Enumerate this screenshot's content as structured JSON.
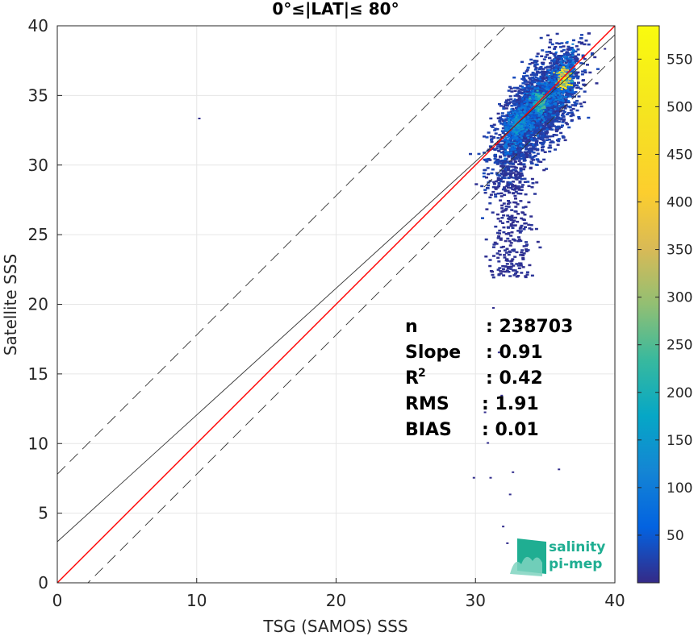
{
  "chart_data": {
    "type": "heatmap",
    "title": "0°≤|LAT|≤ 80°",
    "xlabel": "TSG (SAMOS) SSS",
    "ylabel": "Satellite SSS",
    "xlim": [
      0,
      40
    ],
    "ylim": [
      0,
      40
    ],
    "xticks": [
      "0",
      "10",
      "20",
      "30",
      "40"
    ],
    "yticks": [
      "0",
      "5",
      "10",
      "15",
      "20",
      "25",
      "30",
      "35",
      "40"
    ],
    "grid": true,
    "colorbar": {
      "range": [
        0,
        585
      ],
      "ticks": [
        "50",
        "100",
        "150",
        "200",
        "250",
        "300",
        "350",
        "400",
        "450",
        "500",
        "550"
      ],
      "colormap": "parula"
    },
    "reference_lines": [
      {
        "name": "1:1",
        "slope": 1,
        "intercept": 0,
        "color": "#ff0000",
        "style": "solid"
      },
      {
        "name": "fit",
        "slope": 0.91,
        "intercept": 2.95,
        "color": "#333333",
        "style": "solid"
      },
      {
        "name": "upper bound",
        "slope": 1,
        "intercept": 7.8,
        "color": "#333333",
        "style": "dashed"
      },
      {
        "name": "lower bound",
        "slope": 1,
        "intercept": -2.2,
        "color": "#333333",
        "style": "dashed"
      }
    ],
    "density_clusters": [
      {
        "x": 36.3,
        "y": 36.2,
        "peak": 560
      },
      {
        "x": 34.5,
        "y": 34.6,
        "peak": 260
      },
      {
        "x": 33.0,
        "y": 33.0,
        "peak": 180
      }
    ],
    "stats": [
      {
        "label": "n",
        "value": ": 238703",
        "sup": ""
      },
      {
        "label": "Slope",
        "value": ": 0.91",
        "sup": ""
      },
      {
        "label": "R",
        "value": ": 0.42",
        "sup": "2"
      },
      {
        "label": "RMS",
        "value": ": 1.91",
        "sup": ""
      },
      {
        "label": "BIAS",
        "value": ": 0.01",
        "sup": ""
      }
    ]
  },
  "logo": {
    "line1": "salinity",
    "line2": "pi-mep"
  },
  "colors": {
    "one_to_one": "#ff0000",
    "fit": "#333333",
    "grid": "#e6e6e6"
  }
}
